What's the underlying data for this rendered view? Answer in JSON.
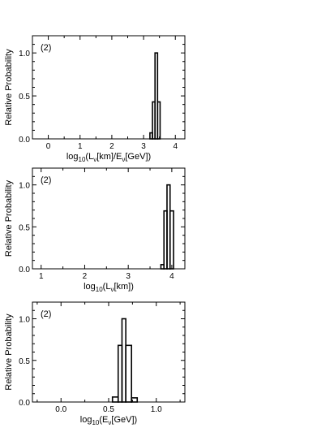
{
  "chart_data": [
    {
      "type": "histogram",
      "panel_label": "(2)",
      "xlabel": "log10(Lν[km]/Eν[GeV])",
      "ylabel": "Relative Probability",
      "xlim": [
        -0.5,
        4.3
      ],
      "ylim": [
        0,
        1.2
      ],
      "xticks": [
        "0",
        "1",
        "2",
        "3",
        "4"
      ],
      "yticks": [
        "0.0",
        "0.5",
        "1.0"
      ],
      "bins": [
        {
          "x0": 3.2,
          "x1": 3.28,
          "value": 0.07
        },
        {
          "x0": 3.28,
          "x1": 3.36,
          "value": 0.43
        },
        {
          "x0": 3.36,
          "x1": 3.44,
          "value": 1.0
        },
        {
          "x0": 3.44,
          "x1": 3.52,
          "value": 0.43
        }
      ]
    },
    {
      "type": "histogram",
      "panel_label": "(2)",
      "xlabel": "log10(Lν[km])",
      "ylabel": "Relative Probability",
      "xlim": [
        0.8,
        4.3
      ],
      "ylim": [
        0,
        1.2
      ],
      "xticks": [
        "1",
        "2",
        "3",
        "4"
      ],
      "yticks": [
        "0.0",
        "0.5",
        "1.0"
      ],
      "bins": [
        {
          "x0": 3.75,
          "x1": 3.82,
          "value": 0.05
        },
        {
          "x0": 3.82,
          "x1": 3.89,
          "value": 0.69
        },
        {
          "x0": 3.89,
          "x1": 3.96,
          "value": 1.0
        },
        {
          "x0": 3.96,
          "x1": 4.04,
          "value": 0.69
        }
      ]
    },
    {
      "type": "histogram",
      "panel_label": "(2)",
      "xlabel": "log10(Eν[GeV])",
      "ylabel": "Relative Probability",
      "xlim": [
        -0.3,
        1.3
      ],
      "ylim": [
        0,
        1.2
      ],
      "xticks": [
        "0.0",
        "0.5",
        "1.0"
      ],
      "yticks": [
        "0.0",
        "0.5",
        "1.0"
      ],
      "bins": [
        {
          "x0": 0.54,
          "x1": 0.6,
          "value": 0.06
        },
        {
          "x0": 0.6,
          "x1": 0.64,
          "value": 0.68
        },
        {
          "x0": 0.64,
          "x1": 0.68,
          "value": 1.0
        },
        {
          "x0": 0.68,
          "x1": 0.74,
          "value": 0.68
        },
        {
          "x0": 0.74,
          "x1": 0.8,
          "value": 0.05
        }
      ]
    }
  ]
}
